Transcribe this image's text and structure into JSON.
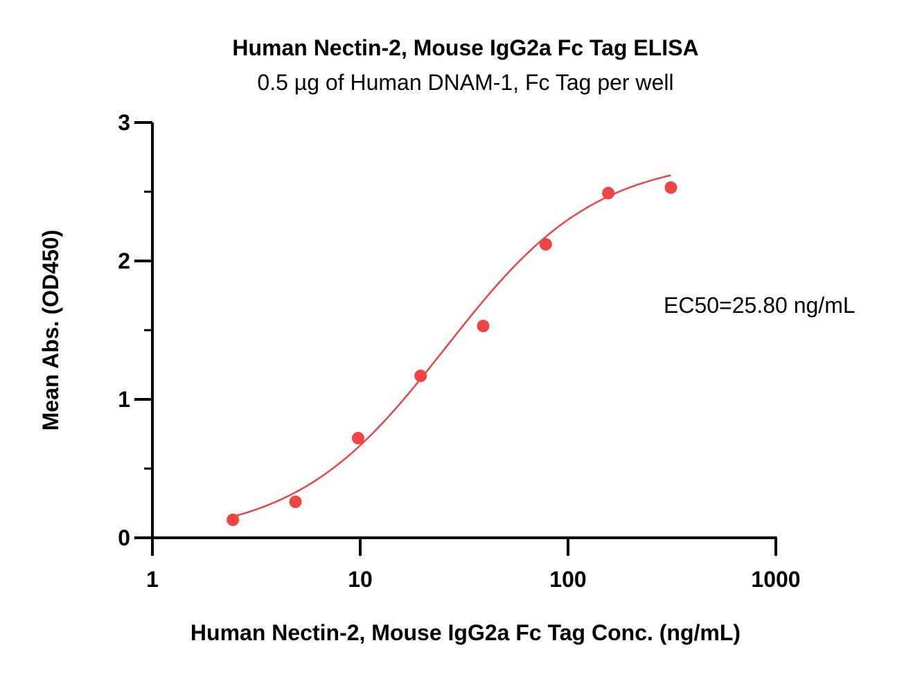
{
  "chart_data": {
    "type": "scatter",
    "title": "Human Nectin-2, Mouse IgG2a Fc Tag ELISA",
    "subtitle": "0.5 µg of Human DNAM-1, Fc Tag per well",
    "xlabel": "Human Nectin-2, Mouse IgG2a Fc Tag Conc. (ng/mL)",
    "ylabel": "Mean Abs. (OD450)",
    "x_scale": "log",
    "xlim": [
      1,
      1000
    ],
    "ylim": [
      0,
      3
    ],
    "x_ticks": [
      "1",
      "10",
      "100",
      "1000"
    ],
    "y_ticks": [
      "0",
      "1",
      "2",
      "3"
    ],
    "grid": false,
    "annotation": "EC50=25.80 ng/mL",
    "point_color": "#ef4444",
    "curve_color": "#e84545",
    "series": [
      {
        "x": [
          2.44,
          4.88,
          9.77,
          19.53,
          39.06,
          78.13,
          156.25,
          312.5
        ],
        "y": [
          0.13,
          0.26,
          0.72,
          1.17,
          1.53,
          2.12,
          2.49,
          2.53
        ]
      }
    ],
    "fit": {
      "model": "4PL",
      "bottom": 0.0,
      "top": 2.75,
      "ec50": 25.8,
      "hill": 1.2,
      "x_range": [
        2.44,
        312.5
      ]
    }
  }
}
